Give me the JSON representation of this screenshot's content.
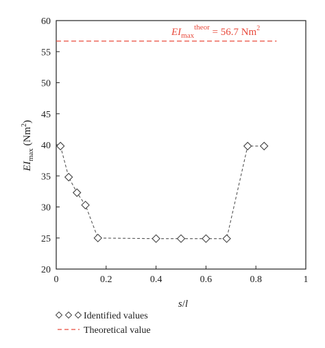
{
  "chart_data": {
    "type": "line",
    "xlabel_parts": {
      "main": "s",
      "sep": "/",
      "sub": "l"
    },
    "ylabel_parts": {
      "main": "EI",
      "sub": "max",
      "unit": " (Nm",
      "sup": "2",
      "close": ")"
    },
    "xlim": [
      0,
      1
    ],
    "ylim": [
      20,
      60
    ],
    "x_ticks": [
      "0",
      "0.2",
      "0.4",
      "0.6",
      "0.8",
      "1"
    ],
    "y_ticks": [
      "20",
      "25",
      "30",
      "35",
      "40",
      "45",
      "50",
      "55",
      "60"
    ],
    "series": [
      {
        "name": "Identified values",
        "marker": "diamond",
        "line_style": "dashed",
        "color": "#555555",
        "x": [
          0.017,
          0.05,
          0.083,
          0.117,
          0.167,
          0.4,
          0.5,
          0.6,
          0.683,
          0.767,
          0.833
        ],
        "y": [
          39.8,
          34.8,
          32.3,
          30.3,
          25.0,
          24.9,
          24.9,
          24.9,
          24.9,
          39.8,
          39.8
        ]
      },
      {
        "name": "Theoretical value",
        "line_style": "dashed",
        "color": "#e8493b",
        "x": [
          0,
          0.883
        ],
        "y": [
          56.7,
          56.7
        ]
      }
    ],
    "annotation": {
      "main": "EI",
      "sub": "max",
      "sup": "theor",
      "rest": " = 56.7 Nm",
      "rest_sup": "2"
    },
    "legend_position": "bottom-left"
  }
}
